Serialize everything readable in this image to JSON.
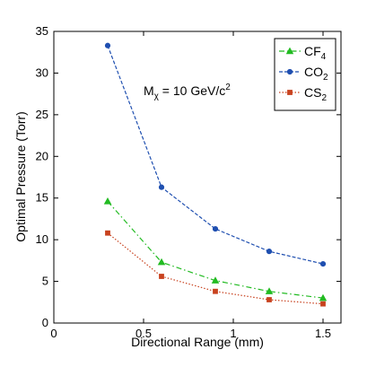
{
  "chart_data": {
    "type": "line",
    "xlabel": "Directional Range (mm)",
    "ylabel": "Optimal Pressure (Torr)",
    "xlim": [
      0,
      1.6
    ],
    "ylim": [
      0,
      35
    ],
    "xticks": [
      0,
      0.5,
      1,
      1.5
    ],
    "xtick_labels": [
      "0",
      "0.5",
      "1",
      "1.5"
    ],
    "yticks": [
      0,
      5,
      10,
      15,
      20,
      25,
      30,
      35
    ],
    "ytick_labels": [
      "0",
      "5",
      "10",
      "15",
      "20",
      "25",
      "30",
      "35"
    ],
    "grid": false,
    "legend_position": "top-right",
    "annotation": {
      "prefix": "M",
      "sub": "χ",
      "text": " = 10 GeV/c",
      "sup": "2"
    },
    "x": [
      0.3,
      0.6,
      0.9,
      1.2,
      1.5
    ],
    "series": [
      {
        "base": "CF",
        "sub": "4",
        "values": [
          14.6,
          7.3,
          5.1,
          3.8,
          3.0
        ],
        "color": "#22bb22",
        "dash": "6,3,1.5,3",
        "marker": "triangle"
      },
      {
        "base": "CO",
        "sub": "2",
        "values": [
          33.3,
          16.3,
          11.3,
          8.6,
          7.1
        ],
        "color": "#1f4fb0",
        "dash": "4,2",
        "marker": "circle"
      },
      {
        "base": "CS",
        "sub": "2",
        "values": [
          10.8,
          5.6,
          3.8,
          2.8,
          2.3
        ],
        "color": "#c8421f",
        "dash": "1.5,2",
        "marker": "square"
      }
    ]
  }
}
